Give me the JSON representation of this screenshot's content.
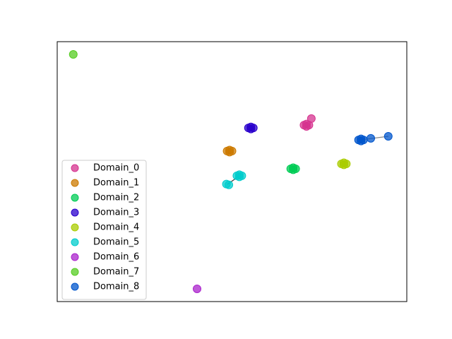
{
  "chart_data": {
    "type": "scatter",
    "xlim": [
      0,
      100
    ],
    "ylim": [
      0,
      100
    ],
    "legend": "lower left",
    "series": [
      {
        "name": "Domain_0",
        "color": "#d6338f",
        "x": [
          70.6,
          71.3,
          72.0,
          71.3,
          72.7
        ],
        "y": [
          67.9,
          68.3,
          67.9,
          67.4,
          70.4
        ]
      },
      {
        "name": "Domain_1",
        "color": "#cc7a00",
        "x": [
          48.6,
          49.3,
          50.0,
          49.3
        ],
        "y": [
          57.9,
          58.3,
          57.9,
          57.5
        ]
      },
      {
        "name": "Domain_2",
        "color": "#00cc55",
        "x": [
          66.8,
          67.5,
          68.2,
          67.5
        ],
        "y": [
          51.1,
          51.5,
          51.1,
          50.7
        ]
      },
      {
        "name": "Domain_3",
        "color": "#2a00cc",
        "x": [
          54.7,
          55.4,
          56.1,
          55.4
        ],
        "y": [
          66.8,
          67.2,
          66.8,
          66.4
        ]
      },
      {
        "name": "Domain_4",
        "color": "#aacc00",
        "x": [
          81.3,
          82.0,
          82.7,
          82.0
        ],
        "y": [
          53.0,
          53.4,
          53.0,
          52.6
        ]
      },
      {
        "name": "Domain_5",
        "color": "#00cccc",
        "x": [
          51.4,
          52.1,
          52.8,
          52.1,
          48.4,
          49.1
        ],
        "y": [
          48.4,
          48.8,
          48.4,
          48.0,
          45.2,
          44.9
        ]
      },
      {
        "name": "Domain_6",
        "color": "#aa22cc",
        "x": [
          40.0
        ],
        "y": [
          4.9
        ]
      },
      {
        "name": "Domain_7",
        "color": "#55cc22",
        "x": [
          4.6
        ],
        "y": [
          95.1
        ]
      },
      {
        "name": "Domain_8",
        "color": "#0055cc",
        "x": [
          86.2,
          86.9,
          87.6,
          86.9,
          89.7,
          94.7
        ],
        "y": [
          62.2,
          62.6,
          62.2,
          61.8,
          62.8,
          63.6
        ]
      }
    ]
  }
}
